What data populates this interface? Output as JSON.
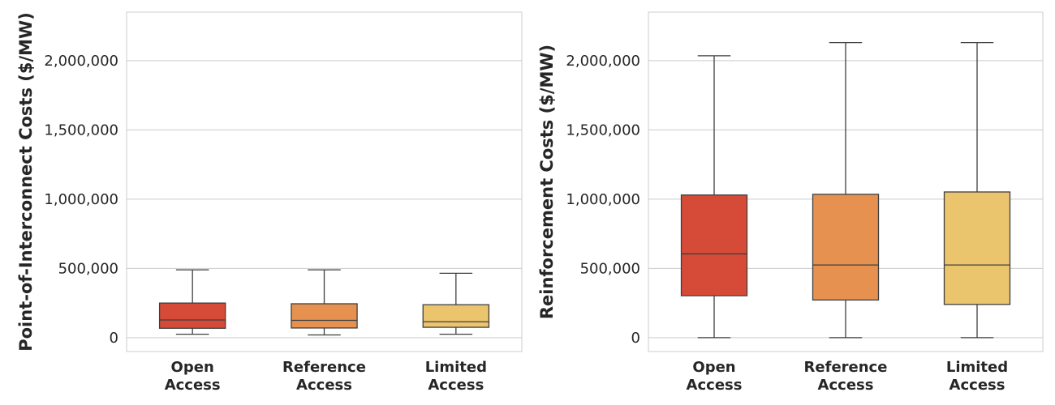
{
  "chart_data": [
    {
      "type": "box",
      "ylabel": "Point-of-Interconnect Costs ($/MW)",
      "xlabel": "",
      "ylim": [
        -100000,
        2350000
      ],
      "yticks": [
        0,
        500000,
        1000000,
        1500000,
        2000000
      ],
      "ytick_labels": [
        "0",
        "500,000",
        "1,000,000",
        "1,500,000",
        "2,000,000"
      ],
      "grid": true,
      "categories": [
        {
          "line1": "Open",
          "line2": "Access"
        },
        {
          "line1": "Reference",
          "line2": "Access"
        },
        {
          "line1": "Limited",
          "line2": "Access"
        }
      ],
      "boxes": [
        {
          "color": "#d64a38",
          "whisker_low": 25000,
          "q1": 68000,
          "median": 128000,
          "q3": 250000,
          "whisker_high": 490000
        },
        {
          "color": "#e6914f",
          "whisker_low": 20000,
          "q1": 70000,
          "median": 125000,
          "q3": 245000,
          "whisker_high": 490000
        },
        {
          "color": "#ebc46e",
          "whisker_low": 25000,
          "q1": 75000,
          "median": 115000,
          "q3": 238000,
          "whisker_high": 465000
        }
      ]
    },
    {
      "type": "box",
      "ylabel": "Reinforcement Costs ($/MW)",
      "xlabel": "",
      "ylim": [
        -100000,
        2350000
      ],
      "yticks": [
        0,
        500000,
        1000000,
        1500000,
        2000000
      ],
      "ytick_labels": [
        "0",
        "500,000",
        "1,000,000",
        "1,500,000",
        "2,000,000"
      ],
      "grid": true,
      "categories": [
        {
          "line1": "Open",
          "line2": "Access"
        },
        {
          "line1": "Reference",
          "line2": "Access"
        },
        {
          "line1": "Limited",
          "line2": "Access"
        }
      ],
      "boxes": [
        {
          "color": "#d64a38",
          "whisker_low": 0,
          "q1": 303000,
          "median": 605000,
          "q3": 1030000,
          "whisker_high": 2035000
        },
        {
          "color": "#e6914f",
          "whisker_low": 0,
          "q1": 272000,
          "median": 525000,
          "q3": 1035000,
          "whisker_high": 2130000
        },
        {
          "color": "#ebc46e",
          "whisker_low": 0,
          "q1": 240000,
          "median": 525000,
          "q3": 1052000,
          "whisker_high": 2130000
        }
      ]
    }
  ]
}
